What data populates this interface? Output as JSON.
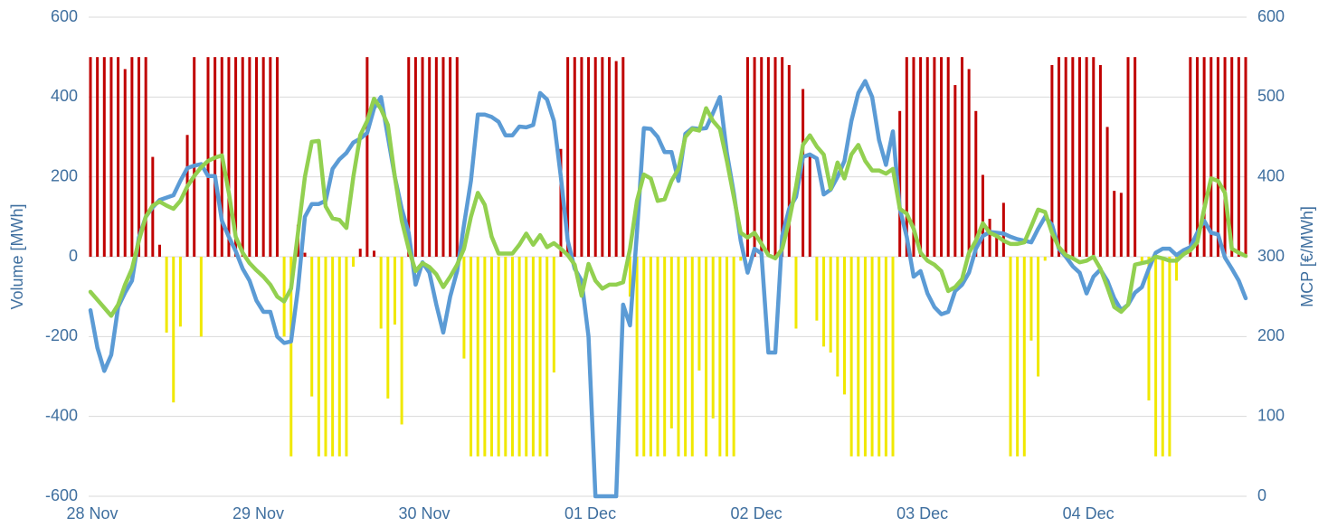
{
  "chart_data": {
    "type": "bar",
    "y_label": "Volume [MWh]",
    "y2_label": "MCP [€/MWh]",
    "categories": [
      "28 Nov",
      null,
      null,
      null,
      null,
      null,
      null,
      null,
      null,
      null,
      null,
      null,
      null,
      null,
      null,
      null,
      null,
      null,
      null,
      null,
      null,
      null,
      null,
      null,
      "29 Nov",
      null,
      null,
      null,
      null,
      null,
      null,
      null,
      null,
      null,
      null,
      null,
      null,
      null,
      null,
      null,
      null,
      null,
      null,
      null,
      null,
      null,
      null,
      null,
      "30 Nov",
      null,
      null,
      null,
      null,
      null,
      null,
      null,
      null,
      null,
      null,
      null,
      null,
      null,
      null,
      null,
      null,
      null,
      null,
      null,
      null,
      null,
      null,
      null,
      "01 Dec",
      null,
      null,
      null,
      null,
      null,
      null,
      null,
      null,
      null,
      null,
      null,
      null,
      null,
      null,
      null,
      null,
      null,
      null,
      null,
      null,
      null,
      null,
      null,
      "02 Dec",
      null,
      null,
      null,
      null,
      null,
      null,
      null,
      null,
      null,
      null,
      null,
      null,
      null,
      null,
      null,
      null,
      null,
      null,
      null,
      null,
      null,
      null,
      null,
      "03 Dec",
      null,
      null,
      null,
      null,
      null,
      null,
      null,
      null,
      null,
      null,
      null,
      null,
      null,
      null,
      null,
      null,
      null,
      null,
      null,
      null,
      null,
      null,
      null,
      "04 Dec",
      null,
      null,
      null,
      null,
      null,
      null,
      null,
      null,
      null,
      null,
      null,
      null,
      null,
      null,
      null,
      null,
      null,
      null,
      null,
      null,
      null,
      null,
      null
    ],
    "series": [
      {
        "type": "bar",
        "axis": "y",
        "color": "#c00000",
        "negative_color": "#f0e800",
        "values": [
          500,
          500,
          500,
          500,
          500,
          470,
          500,
          500,
          500,
          250,
          30,
          -190,
          -365,
          -175,
          305,
          500,
          -200,
          500,
          500,
          500,
          500,
          500,
          500,
          500,
          500,
          500,
          500,
          500,
          -200,
          -500,
          80,
          10,
          -350,
          -500,
          -500,
          -500,
          -500,
          -500,
          -25,
          20,
          500,
          15,
          -180,
          -355,
          -170,
          -420,
          500,
          500,
          500,
          500,
          500,
          500,
          500,
          500,
          -255,
          -500,
          -500,
          -500,
          -500,
          -500,
          -500,
          -500,
          -500,
          -500,
          -500,
          -500,
          -500,
          -290,
          270,
          500,
          500,
          500,
          500,
          500,
          500,
          500,
          490,
          500,
          -100,
          -500,
          -500,
          -500,
          -500,
          -500,
          -430,
          -500,
          -500,
          -500,
          -285,
          -500,
          -405,
          -500,
          -500,
          -500,
          -10,
          500,
          500,
          500,
          500,
          500,
          500,
          480,
          -180,
          420,
          260,
          -160,
          -225,
          -240,
          -300,
          -345,
          -500,
          -500,
          -500,
          -500,
          -500,
          -500,
          -500,
          365,
          500,
          500,
          500,
          500,
          500,
          500,
          500,
          430,
          500,
          470,
          365,
          205,
          95,
          60,
          135,
          -500,
          -500,
          -500,
          -210,
          -300,
          -10,
          480,
          500,
          500,
          500,
          500,
          500,
          500,
          480,
          325,
          165,
          160,
          500,
          500,
          -20,
          -360,
          -500,
          -500,
          -500,
          -60,
          0,
          500,
          500,
          500,
          500,
          500,
          500,
          500,
          500,
          500
        ]
      },
      {
        "type": "line",
        "axis": "y2",
        "color": "#5b9bd5",
        "values": [
          233,
          186,
          157,
          177,
          237,
          255,
          270,
          324,
          350,
          362,
          371,
          374,
          377,
          395,
          411,
          414,
          416,
          401,
          401,
          345,
          325,
          307,
          285,
          270,
          245,
          231,
          231,
          200,
          192,
          194,
          260,
          350,
          366,
          366,
          370,
          410,
          422,
          430,
          443,
          448,
          455,
          486,
          500,
          450,
          400,
          360,
          330,
          265,
          293,
          280,
          240,
          205,
          250,
          282,
          340,
          395,
          478,
          478,
          475,
          469,
          452,
          452,
          463,
          462,
          465,
          505,
          497,
          470,
          400,
          320,
          285,
          270,
          200,
          0,
          0,
          0,
          0,
          240,
          214,
          330,
          461,
          460,
          450,
          431,
          431,
          395,
          454,
          461,
          460,
          461,
          480,
          500,
          430,
          380,
          320,
          280,
          310,
          304,
          180,
          180,
          326,
          360,
          375,
          425,
          428,
          423,
          378,
          384,
          400,
          420,
          470,
          505,
          520,
          500,
          446,
          415,
          457,
          360,
          325,
          275,
          282,
          254,
          237,
          228,
          231,
          257,
          265,
          280,
          310,
          326,
          331,
          330,
          329,
          325,
          322,
          320,
          318,
          335,
          350,
          340,
          310,
          300,
          288,
          280,
          254,
          275,
          284,
          270,
          248,
          233,
          240,
          255,
          262,
          285,
          305,
          310,
          310,
          302,
          308,
          312,
          330,
          345,
          330,
          328,
          299,
          285,
          270,
          248
        ]
      },
      {
        "type": "line",
        "axis": "y2",
        "color": "#92d050",
        "values": [
          256,
          246,
          236,
          226,
          240,
          265,
          285,
          320,
          350,
          364,
          369,
          364,
          360,
          370,
          388,
          401,
          412,
          420,
          424,
          427,
          380,
          325,
          305,
          292,
          283,
          275,
          265,
          250,
          244,
          260,
          330,
          400,
          444,
          445,
          363,
          348,
          346,
          336,
          400,
          452,
          470,
          498,
          485,
          465,
          400,
          345,
          310,
          282,
          292,
          287,
          278,
          262,
          275,
          290,
          310,
          350,
          380,
          365,
          325,
          304,
          304,
          304,
          315,
          329,
          315,
          327,
          312,
          317,
          310,
          302,
          290,
          251,
          291,
          270,
          260,
          265,
          265,
          268,
          310,
          370,
          403,
          398,
          370,
          372,
          395,
          410,
          450,
          460,
          458,
          486,
          470,
          460,
          420,
          375,
          330,
          324,
          330,
          316,
          302,
          298,
          310,
          345,
          388,
          440,
          452,
          438,
          428,
          385,
          418,
          398,
          428,
          440,
          420,
          408,
          408,
          404,
          410,
          360,
          354,
          335,
          305,
          295,
          290,
          282,
          257,
          262,
          272,
          305,
          320,
          342,
          330,
          326,
          320,
          316,
          316,
          318,
          338,
          359,
          356,
          330,
          312,
          302,
          298,
          293,
          295,
          300,
          285,
          262,
          237,
          231,
          240,
          290,
          292,
          294,
          300,
          298,
          295,
          295,
          303,
          308,
          318,
          360,
          398,
          395,
          380,
          310,
          305,
          301
        ]
      }
    ],
    "ylim": [
      -600,
      600
    ],
    "yticks": [
      -600,
      -400,
      -200,
      0,
      200,
      400,
      600
    ],
    "y2lim": [
      0,
      600
    ],
    "y2ticks": [
      0,
      100,
      200,
      300,
      400,
      500,
      600
    ],
    "grid": true
  }
}
